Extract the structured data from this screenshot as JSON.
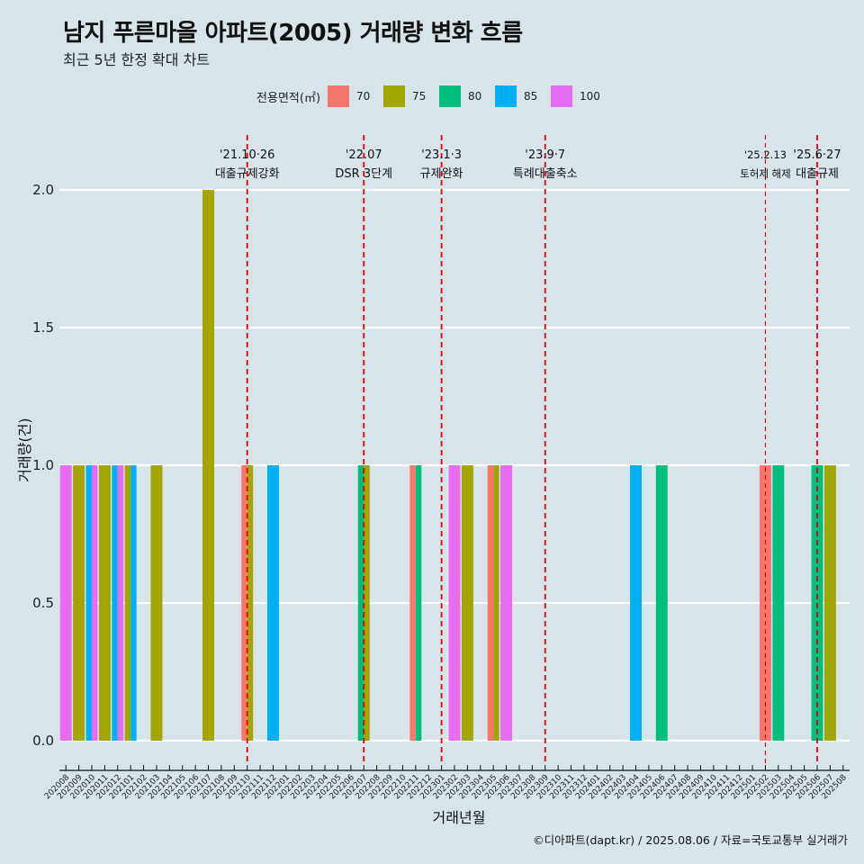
{
  "title": "남지 푸른마을 아파트(2005) 거래량 변화 흐름",
  "subtitle": "최근 5년 한정 확대 차트",
  "caption": "©디아파트(dapt.kr) / 2025.08.06 / 자료=국토교통부 실거래가",
  "colors": {
    "background": "#d7e4ea",
    "grid": "#ffffff",
    "event_line": "#e8000b",
    "series": {
      "70": "#f8766d",
      "75": "#a3a500",
      "80": "#00bf7d",
      "85": "#00b0f6",
      "100": "#e76bf3"
    }
  },
  "chart_data": {
    "type": "bar",
    "title": "남지 푸른마을 아파트(2005) 거래량 변화 흐름",
    "subtitle": "최근 5년 한정 확대 차트",
    "xlabel": "거래년월",
    "ylabel": "거래량(건)",
    "ylim": [
      0,
      2.2
    ],
    "yticks": [
      0.0,
      0.5,
      1.0,
      1.5,
      2.0
    ],
    "ytick_labels": [
      "0.0",
      "0.5",
      "1.0",
      "1.5",
      "2.0"
    ],
    "grid": true,
    "legend": {
      "title": "전용면적(㎡)",
      "position": "top",
      "entries": [
        "70",
        "75",
        "80",
        "85",
        "100"
      ]
    },
    "categories": [
      "202008",
      "202009",
      "202010",
      "202011",
      "202012",
      "202101",
      "202102",
      "202103",
      "202104",
      "202105",
      "202106",
      "202107",
      "202108",
      "202109",
      "202110",
      "202111",
      "202112",
      "202201",
      "202202",
      "202203",
      "202204",
      "202205",
      "202206",
      "202207",
      "202208",
      "202209",
      "202210",
      "202211",
      "202212",
      "202301",
      "202302",
      "202303",
      "202304",
      "202305",
      "202306",
      "202307",
      "202308",
      "202309",
      "202310",
      "202311",
      "202312",
      "202401",
      "202402",
      "202403",
      "202404",
      "202405",
      "202406",
      "202407",
      "202408",
      "202409",
      "202410",
      "202411",
      "202412",
      "202501",
      "202502",
      "202503",
      "202504",
      "202505",
      "202506",
      "202507",
      "202508"
    ],
    "bars": [
      {
        "month": "202008",
        "segments": [
          {
            "area": "100",
            "value": 1
          }
        ]
      },
      {
        "month": "202009",
        "segments": [
          {
            "area": "75",
            "value": 1
          }
        ]
      },
      {
        "month": "202010",
        "segments": [
          {
            "area": "85",
            "value": 1
          },
          {
            "area": "100",
            "value": 1
          }
        ]
      },
      {
        "month": "202011",
        "segments": [
          {
            "area": "75",
            "value": 1
          }
        ]
      },
      {
        "month": "202012",
        "segments": [
          {
            "area": "85",
            "value": 1
          },
          {
            "area": "100",
            "value": 1
          }
        ]
      },
      {
        "month": "202101",
        "segments": [
          {
            "area": "75",
            "value": 1
          },
          {
            "area": "85",
            "value": 1
          }
        ]
      },
      {
        "month": "202103",
        "segments": [
          {
            "area": "75",
            "value": 1
          }
        ]
      },
      {
        "month": "202107",
        "segments": [
          {
            "area": "75",
            "value": 2
          }
        ]
      },
      {
        "month": "202110",
        "segments": [
          {
            "area": "70",
            "value": 1
          },
          {
            "area": "75",
            "value": 1
          }
        ]
      },
      {
        "month": "202112",
        "segments": [
          {
            "area": "85",
            "value": 1
          }
        ]
      },
      {
        "month": "202207",
        "segments": [
          {
            "area": "80",
            "value": 1
          },
          {
            "area": "75",
            "value": 1
          }
        ]
      },
      {
        "month": "202211",
        "segments": [
          {
            "area": "70",
            "value": 1
          },
          {
            "area": "80",
            "value": 1
          }
        ]
      },
      {
        "month": "202302",
        "segments": [
          {
            "area": "100",
            "value": 1
          }
        ]
      },
      {
        "month": "202303",
        "segments": [
          {
            "area": "75",
            "value": 1
          }
        ]
      },
      {
        "month": "202305",
        "segments": [
          {
            "area": "70",
            "value": 1
          },
          {
            "area": "75",
            "value": 1
          }
        ]
      },
      {
        "month": "202306",
        "segments": [
          {
            "area": "100",
            "value": 1
          }
        ]
      },
      {
        "month": "202404",
        "segments": [
          {
            "area": "85",
            "value": 1
          }
        ]
      },
      {
        "month": "202406",
        "segments": [
          {
            "area": "80",
            "value": 1
          }
        ]
      },
      {
        "month": "202502",
        "segments": [
          {
            "area": "70",
            "value": 1
          }
        ]
      },
      {
        "month": "202503",
        "segments": [
          {
            "area": "80",
            "value": 1
          }
        ]
      },
      {
        "month": "202506",
        "segments": [
          {
            "area": "80",
            "value": 1
          }
        ]
      },
      {
        "month": "202507",
        "segments": [
          {
            "area": "75",
            "value": 1
          }
        ]
      }
    ],
    "events": [
      {
        "month": "202110",
        "date": "'21.10·26",
        "label": "대출규제강화",
        "style": "dashed-bold"
      },
      {
        "month": "202207",
        "date": "'22.07",
        "label": "DSR 3단계",
        "style": "dashed-bold"
      },
      {
        "month": "202301",
        "date": "'23.1·3",
        "label": "규제완화",
        "style": "dashed-bold"
      },
      {
        "month": "202309",
        "date": "'23.9·7",
        "label": "특례대출축소",
        "style": "dashed-bold"
      },
      {
        "month": "202502",
        "date": "'25.2.13",
        "label": "토허제 해제",
        "style": "dashed-thin"
      },
      {
        "month": "202506",
        "date": "'25.6·27",
        "label": "대출규제",
        "style": "dashed-bold"
      }
    ]
  }
}
